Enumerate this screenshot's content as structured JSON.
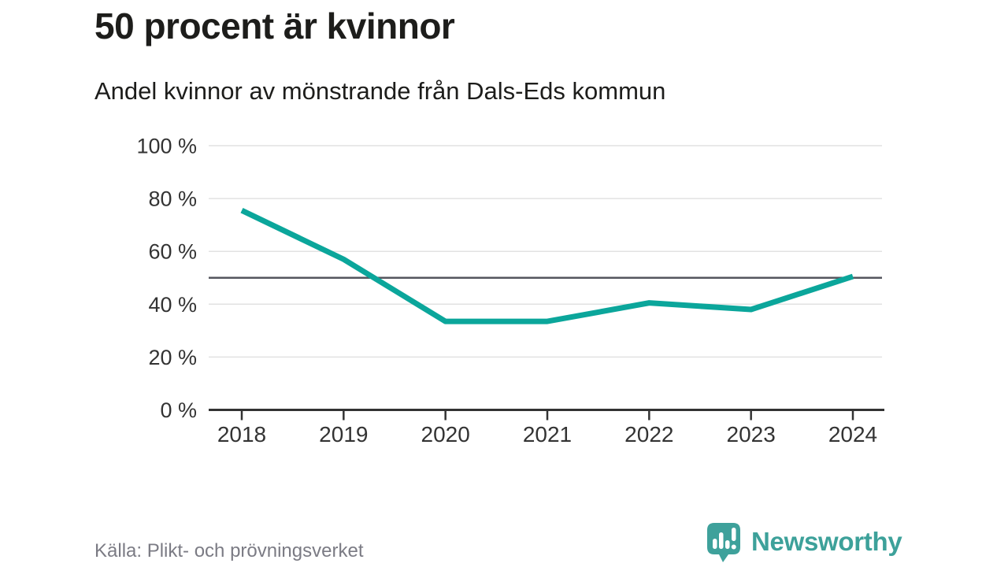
{
  "header": {
    "title": "50 procent är kvinnor",
    "subtitle": "Andel kvinnor av mönstrande från Dals-Eds kommun"
  },
  "chart_data": {
    "type": "line",
    "title": "50 procent är kvinnor",
    "subtitle": "Andel kvinnor av mönstrande från Dals-Eds kommun",
    "x": [
      2018,
      2019,
      2020,
      2021,
      2022,
      2023,
      2024
    ],
    "series": [
      {
        "name": "Andel kvinnor av mönstrande",
        "values": [
          75.5,
          57,
          33.5,
          33.5,
          40.5,
          38,
          50.5
        ]
      }
    ],
    "unit": "%",
    "ylim": [
      0,
      100
    ],
    "yticks": [
      0,
      20,
      40,
      60,
      80,
      100
    ],
    "ytick_suffix": " %",
    "reference_line": {
      "value": 50,
      "color": "#55565e"
    },
    "grid": "horizontal",
    "legend": "none",
    "line_color": "#0ba69b",
    "axis_color": "#333333",
    "gridline_color": "#e2e2e2",
    "tick_label_color": "#333333"
  },
  "footer": {
    "source": "Källa: Plikt- och prövningsverket",
    "brand": "Newsworthy",
    "brand_color": "#3da19a",
    "logo_bubble_color": "#3ea19b",
    "logo_glyph_color": "#ffffff"
  }
}
